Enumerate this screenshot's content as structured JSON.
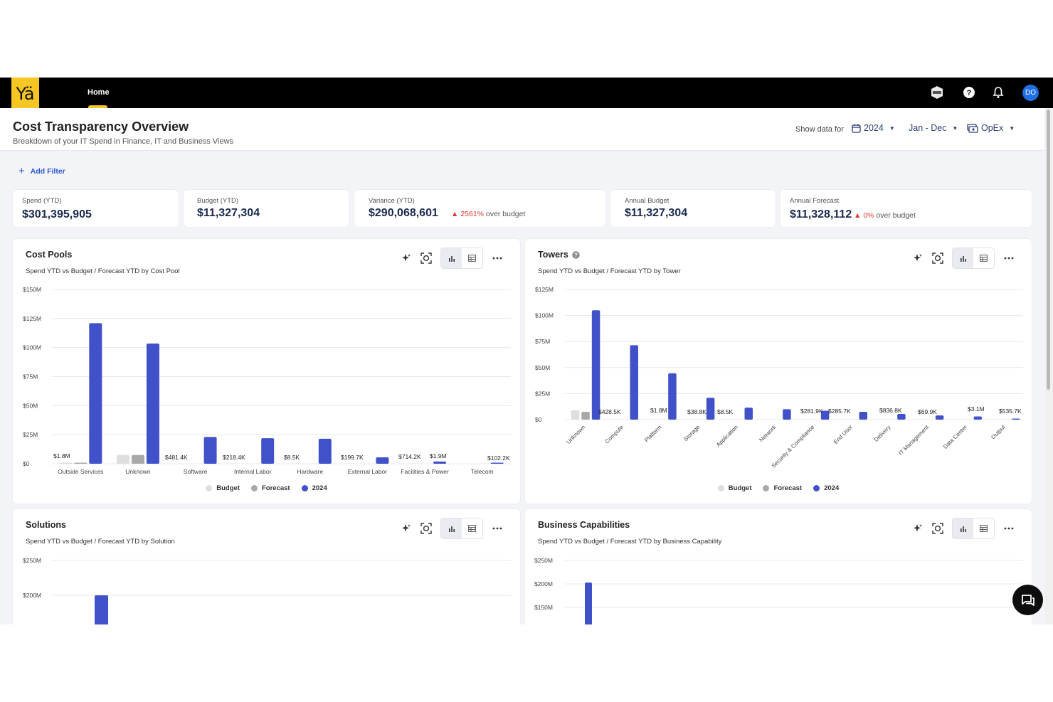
{
  "app": {
    "logo_text": "Yä",
    "nav_home": "Home",
    "avatar": "DO"
  },
  "header": {
    "title": "Cost Transparency Overview",
    "subtitle": "Breakdown of your IT Spend in Finance, IT and Business Views",
    "show_data_for": "Show data for",
    "year": "2024",
    "period": "Jan - Dec",
    "type": "OpEx"
  },
  "add_filter": "Add Filter",
  "kpis": [
    {
      "label": "Spend (YTD)",
      "value": "$301,395,905"
    },
    {
      "label": "Budget (YTD)",
      "value": "$11,327,304"
    },
    {
      "label": "Variance (YTD)",
      "value": "$290,068,601",
      "pct": "2561%",
      "note": " over budget"
    },
    {
      "label": "Annual Budget",
      "value": "$11,327,304"
    },
    {
      "label": "Annual Forecast",
      "value": "$11,328,112",
      "pct": "0%",
      "note": " over budget"
    }
  ],
  "legend": {
    "budget": "Budget",
    "forecast": "Forecast",
    "year": "2024"
  },
  "colors": {
    "budget": "#dedede",
    "forecast": "#a9a9a9",
    "year": "#4051c9",
    "accent": "#f6c624"
  },
  "cards": {
    "cost_pools": {
      "title": "Cost Pools",
      "subtitle": "Spend YTD vs Budget / Forecast YTD by Cost Pool"
    },
    "towers": {
      "title": "Towers",
      "subtitle": "Spend YTD vs Budget / Forecast YTD by Tower"
    },
    "solutions": {
      "title": "Solutions",
      "subtitle": "Spend YTD vs Budget / Forecast YTD by Solution"
    },
    "business_capabilities": {
      "title": "Business Capabilities",
      "subtitle": "Spend YTD vs Budget / Forecast YTD by Business Capability"
    }
  },
  "chart_data": [
    {
      "type": "bar",
      "name": "cost_pools",
      "categories": [
        "Outside Services",
        "Unknown",
        "Software",
        "Internal Labor",
        "Hardware",
        "External Labor",
        "Facilities & Power",
        "Telecom"
      ],
      "series": [
        {
          "name": "Budget",
          "values": [
            0.4,
            7.5,
            0,
            0,
            0,
            0,
            0,
            0
          ]
        },
        {
          "name": "Forecast",
          "values": [
            0.4,
            7.5,
            0,
            0,
            0,
            0,
            0,
            0
          ]
        },
        {
          "name": "2024",
          "values": [
            121,
            103.5,
            23,
            22,
            21.5,
            5.5,
            1.9,
            0.1
          ]
        }
      ],
      "data_labels": [
        "$1.8M",
        "",
        "$481.4K",
        "$218.4K",
        "$8.5K",
        "$199.7K",
        "$714.2K",
        "$1.9M",
        "$102.2K"
      ],
      "yticks": [
        "$0",
        "$25M",
        "$50M",
        "$75M",
        "$100M",
        "$125M",
        "$150M"
      ],
      "ylim": [
        0,
        150
      ],
      "yunit": "$M"
    },
    {
      "type": "bar",
      "name": "towers",
      "categories": [
        "Unknown",
        "Compute",
        "Platform",
        "Storage",
        "Application",
        "Network",
        "Security & Compliance",
        "End User",
        "Delivery",
        "IT Management",
        "Data Center",
        "Output"
      ],
      "series": [
        {
          "name": "Budget",
          "values": [
            9,
            0,
            0,
            0,
            0,
            0,
            0,
            0,
            0,
            0,
            0,
            0
          ]
        },
        {
          "name": "Forecast",
          "values": [
            7.5,
            0,
            0,
            0,
            0,
            0,
            0,
            0,
            0,
            0,
            0,
            0
          ]
        },
        {
          "name": "2024",
          "values": [
            105,
            71.5,
            44.5,
            21,
            11.5,
            10,
            8.5,
            7.5,
            5.5,
            4,
            3.1,
            0.5
          ]
        }
      ],
      "data_labels": [
        "$428.5K",
        "$1.8M",
        "$38.8K",
        "$8.5K",
        "$281.9K",
        "$285.7K",
        "$836.8K",
        "$69.9K",
        "$3.1M",
        "$535.7K"
      ],
      "yticks": [
        "$0",
        "$25M",
        "$50M",
        "$75M",
        "$100M",
        "$125M"
      ],
      "ylim": [
        0,
        125
      ],
      "yunit": "$M"
    },
    {
      "type": "bar",
      "name": "solutions",
      "yticks": [
        "$200M",
        "$250M"
      ],
      "ylim": [
        0,
        250
      ],
      "series": [
        {
          "name": "2024",
          "values": [
            200
          ]
        }
      ]
    },
    {
      "type": "bar",
      "name": "business_capabilities",
      "yticks": [
        "$150M",
        "$200M",
        "$250M"
      ],
      "ylim": [
        0,
        250
      ],
      "series": [
        {
          "name": "2024",
          "values": [
            203
          ]
        }
      ]
    }
  ]
}
